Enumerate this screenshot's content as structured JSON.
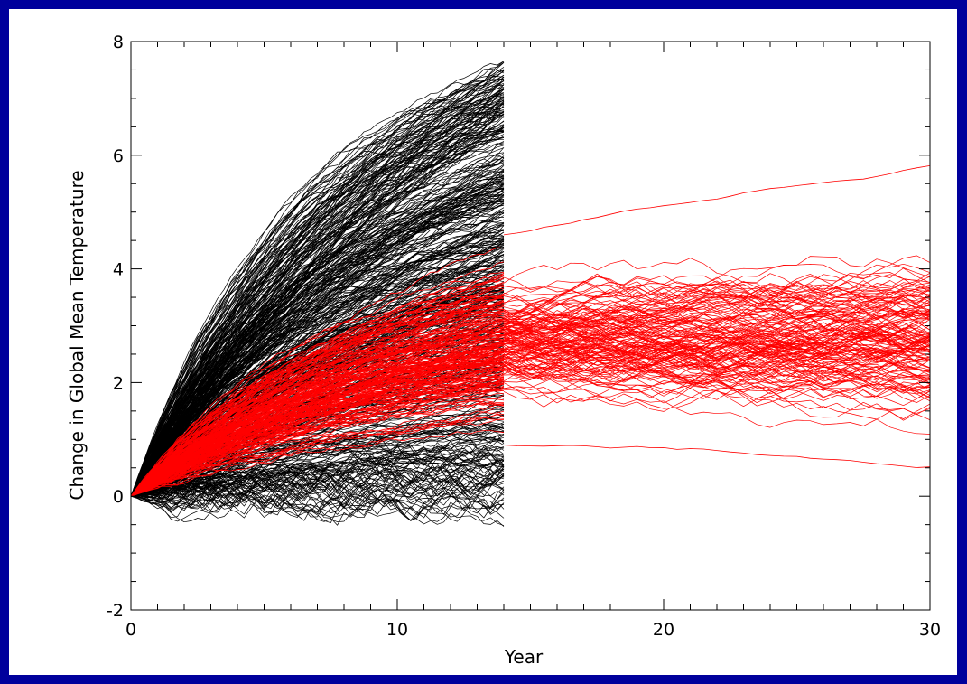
{
  "chart_data": {
    "type": "line",
    "title": "",
    "xlabel": "Year",
    "ylabel": "Change in Global Mean Temperature",
    "xlim": [
      0,
      30
    ],
    "ylim": [
      -2,
      8
    ],
    "x_ticks": [
      0,
      10,
      20,
      30
    ],
    "y_ticks": [
      -2,
      0,
      2,
      4,
      6,
      8
    ],
    "grid": false,
    "legend": "none",
    "groups": [
      {
        "color": "#000000",
        "x_range": [
          0,
          14
        ],
        "member_count": 1000,
        "value_at_year_14": {
          "min": -0.3,
          "max": 7.6
        }
      },
      {
        "color": "#ff0000",
        "x_range": [
          0,
          14
        ],
        "member_count": 400,
        "value_at_year_14": {
          "min": 0.8,
          "max": 4.6
        }
      },
      {
        "color": "#ff0000",
        "x_range": [
          14,
          30
        ],
        "member_count": 200,
        "value_at_year_30": {
          "min": 0.6,
          "max": 5.9
        },
        "typical_range": [
          1.5,
          4.0
        ]
      }
    ]
  }
}
